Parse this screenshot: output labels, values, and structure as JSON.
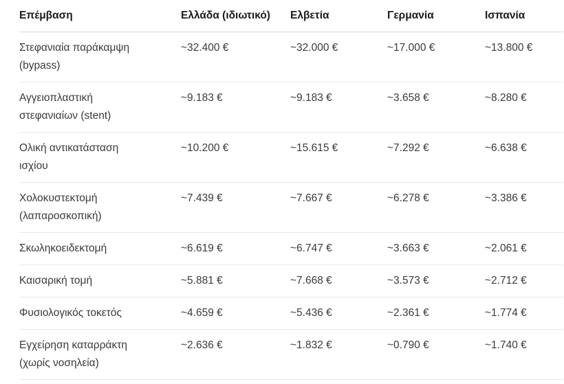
{
  "table": {
    "headers": [
      "Επέμβαση",
      "Ελλάδα (ιδιωτικό)",
      "Ελβετία",
      "Γερμανία",
      "Ισπανία"
    ],
    "rows": [
      [
        "Στεφανιαία παράκαμψη (bypass)",
        "~32.400 €",
        "~32.000 €",
        "~17.000 €",
        "~13.800 €"
      ],
      [
        "Αγγειοπλαστική στεφανιαίων (stent)",
        "~9.183 €",
        "~9.183 €",
        "~3.658 €",
        "~8.280 €"
      ],
      [
        "Ολική αντικατάσταση ισχίου",
        "~10.200 €",
        "~15.615 €",
        "~7.292 €",
        "~6.638 €"
      ],
      [
        "Χολοκυστεκτομή (λαπαροσκοπική)",
        "~7.439 €",
        "~7.667 €",
        "~6.278 €",
        "~3.386 €"
      ],
      [
        "Σκωληκοειδεκτομή",
        "~6.619 €",
        "~6.747 €",
        "~3.663 €",
        "~2.061 €"
      ],
      [
        "Καισαρική τομή",
        "~5.881 €",
        "~7.668 €",
        "~3.573 €",
        "~2.712 €"
      ],
      [
        "Φυσιολογικός τοκετός",
        "~4.659 €",
        "~5.436 €",
        "~2.361 €",
        "~1.774 €"
      ],
      [
        "Εγχείρηση καταρράκτη (χωρίς νοσηλεία)",
        "~2.636 €",
        "~1.832 €",
        "~0.790 €",
        "~1.740 €"
      ]
    ]
  },
  "colors": {
    "header_text": "#1b1b1b",
    "body_text": "#3a3a3a",
    "header_border": "#d8d8d8",
    "row_border": "#e7e7e7",
    "background": "#ffffff"
  }
}
